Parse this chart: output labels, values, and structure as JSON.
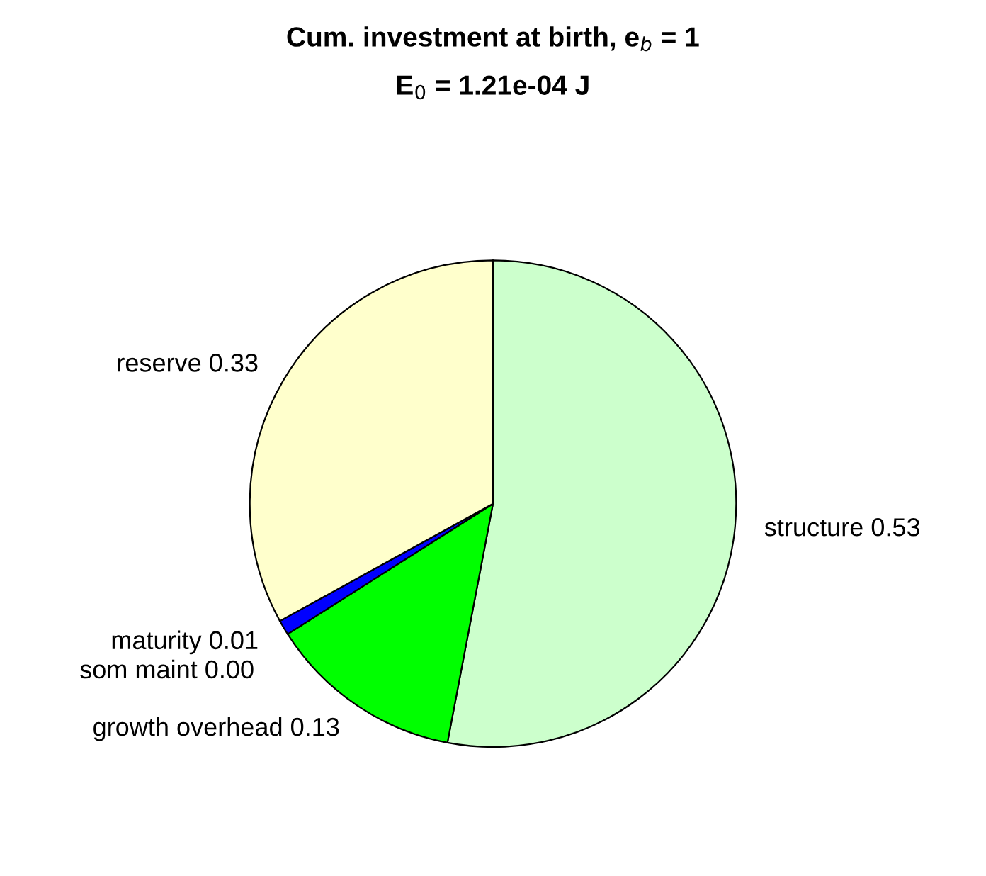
{
  "chart_data": {
    "type": "pie",
    "title": "Cum. investment at birth, e$_{b}$ = 1",
    "subtitle": "E$_{0}$ = 1.21e-04 J",
    "categories": [
      "structure",
      "growth overhead",
      "maturity",
      "som maint",
      "reserve"
    ],
    "values": [
      0.53,
      0.13,
      0.01,
      0.0,
      0.33
    ],
    "value_labels": [
      "0.53",
      "0.13",
      "0.01",
      "0.00",
      "0.33"
    ],
    "colors": [
      "#ccffcc",
      "#00ff00",
      "#0000ff",
      "#ff0000",
      "#ffffcc"
    ],
    "legend": false
  }
}
